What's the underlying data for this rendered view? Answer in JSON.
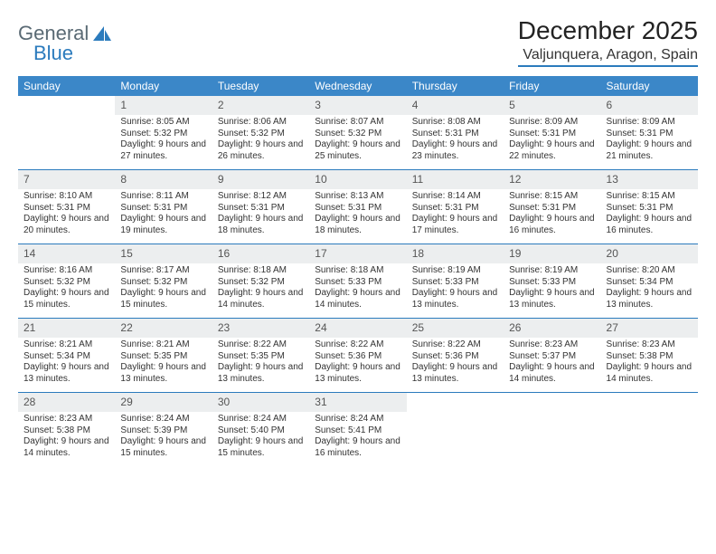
{
  "logo": {
    "part1": "General",
    "part2": "Blue"
  },
  "title": "December 2025",
  "location": "Valjunquera, Aragon, Spain",
  "columns": [
    "Sunday",
    "Monday",
    "Tuesday",
    "Wednesday",
    "Thursday",
    "Friday",
    "Saturday"
  ],
  "colors": {
    "header_bg": "#3b87c8",
    "header_text": "#ffffff",
    "daynum_bg": "#eceeef",
    "rule": "#2b7bbd",
    "logo_gray": "#5a6a74",
    "logo_blue": "#2b7bbd"
  },
  "weeks": [
    {
      "nums": [
        "",
        "1",
        "2",
        "3",
        "4",
        "5",
        "6"
      ],
      "cells": [
        null,
        {
          "sr": "Sunrise: 8:05 AM",
          "ss": "Sunset: 5:32 PM",
          "dl": "Daylight: 9 hours and 27 minutes."
        },
        {
          "sr": "Sunrise: 8:06 AM",
          "ss": "Sunset: 5:32 PM",
          "dl": "Daylight: 9 hours and 26 minutes."
        },
        {
          "sr": "Sunrise: 8:07 AM",
          "ss": "Sunset: 5:32 PM",
          "dl": "Daylight: 9 hours and 25 minutes."
        },
        {
          "sr": "Sunrise: 8:08 AM",
          "ss": "Sunset: 5:31 PM",
          "dl": "Daylight: 9 hours and 23 minutes."
        },
        {
          "sr": "Sunrise: 8:09 AM",
          "ss": "Sunset: 5:31 PM",
          "dl": "Daylight: 9 hours and 22 minutes."
        },
        {
          "sr": "Sunrise: 8:09 AM",
          "ss": "Sunset: 5:31 PM",
          "dl": "Daylight: 9 hours and 21 minutes."
        }
      ]
    },
    {
      "nums": [
        "7",
        "8",
        "9",
        "10",
        "11",
        "12",
        "13"
      ],
      "cells": [
        {
          "sr": "Sunrise: 8:10 AM",
          "ss": "Sunset: 5:31 PM",
          "dl": "Daylight: 9 hours and 20 minutes."
        },
        {
          "sr": "Sunrise: 8:11 AM",
          "ss": "Sunset: 5:31 PM",
          "dl": "Daylight: 9 hours and 19 minutes."
        },
        {
          "sr": "Sunrise: 8:12 AM",
          "ss": "Sunset: 5:31 PM",
          "dl": "Daylight: 9 hours and 18 minutes."
        },
        {
          "sr": "Sunrise: 8:13 AM",
          "ss": "Sunset: 5:31 PM",
          "dl": "Daylight: 9 hours and 18 minutes."
        },
        {
          "sr": "Sunrise: 8:14 AM",
          "ss": "Sunset: 5:31 PM",
          "dl": "Daylight: 9 hours and 17 minutes."
        },
        {
          "sr": "Sunrise: 8:15 AM",
          "ss": "Sunset: 5:31 PM",
          "dl": "Daylight: 9 hours and 16 minutes."
        },
        {
          "sr": "Sunrise: 8:15 AM",
          "ss": "Sunset: 5:31 PM",
          "dl": "Daylight: 9 hours and 16 minutes."
        }
      ]
    },
    {
      "nums": [
        "14",
        "15",
        "16",
        "17",
        "18",
        "19",
        "20"
      ],
      "cells": [
        {
          "sr": "Sunrise: 8:16 AM",
          "ss": "Sunset: 5:32 PM",
          "dl": "Daylight: 9 hours and 15 minutes."
        },
        {
          "sr": "Sunrise: 8:17 AM",
          "ss": "Sunset: 5:32 PM",
          "dl": "Daylight: 9 hours and 15 minutes."
        },
        {
          "sr": "Sunrise: 8:18 AM",
          "ss": "Sunset: 5:32 PM",
          "dl": "Daylight: 9 hours and 14 minutes."
        },
        {
          "sr": "Sunrise: 8:18 AM",
          "ss": "Sunset: 5:33 PM",
          "dl": "Daylight: 9 hours and 14 minutes."
        },
        {
          "sr": "Sunrise: 8:19 AM",
          "ss": "Sunset: 5:33 PM",
          "dl": "Daylight: 9 hours and 13 minutes."
        },
        {
          "sr": "Sunrise: 8:19 AM",
          "ss": "Sunset: 5:33 PM",
          "dl": "Daylight: 9 hours and 13 minutes."
        },
        {
          "sr": "Sunrise: 8:20 AM",
          "ss": "Sunset: 5:34 PM",
          "dl": "Daylight: 9 hours and 13 minutes."
        }
      ]
    },
    {
      "nums": [
        "21",
        "22",
        "23",
        "24",
        "25",
        "26",
        "27"
      ],
      "cells": [
        {
          "sr": "Sunrise: 8:21 AM",
          "ss": "Sunset: 5:34 PM",
          "dl": "Daylight: 9 hours and 13 minutes."
        },
        {
          "sr": "Sunrise: 8:21 AM",
          "ss": "Sunset: 5:35 PM",
          "dl": "Daylight: 9 hours and 13 minutes."
        },
        {
          "sr": "Sunrise: 8:22 AM",
          "ss": "Sunset: 5:35 PM",
          "dl": "Daylight: 9 hours and 13 minutes."
        },
        {
          "sr": "Sunrise: 8:22 AM",
          "ss": "Sunset: 5:36 PM",
          "dl": "Daylight: 9 hours and 13 minutes."
        },
        {
          "sr": "Sunrise: 8:22 AM",
          "ss": "Sunset: 5:36 PM",
          "dl": "Daylight: 9 hours and 13 minutes."
        },
        {
          "sr": "Sunrise: 8:23 AM",
          "ss": "Sunset: 5:37 PM",
          "dl": "Daylight: 9 hours and 14 minutes."
        },
        {
          "sr": "Sunrise: 8:23 AM",
          "ss": "Sunset: 5:38 PM",
          "dl": "Daylight: 9 hours and 14 minutes."
        }
      ]
    },
    {
      "nums": [
        "28",
        "29",
        "30",
        "31",
        "",
        "",
        ""
      ],
      "cells": [
        {
          "sr": "Sunrise: 8:23 AM",
          "ss": "Sunset: 5:38 PM",
          "dl": "Daylight: 9 hours and 14 minutes."
        },
        {
          "sr": "Sunrise: 8:24 AM",
          "ss": "Sunset: 5:39 PM",
          "dl": "Daylight: 9 hours and 15 minutes."
        },
        {
          "sr": "Sunrise: 8:24 AM",
          "ss": "Sunset: 5:40 PM",
          "dl": "Daylight: 9 hours and 15 minutes."
        },
        {
          "sr": "Sunrise: 8:24 AM",
          "ss": "Sunset: 5:41 PM",
          "dl": "Daylight: 9 hours and 16 minutes."
        },
        null,
        null,
        null
      ]
    }
  ]
}
